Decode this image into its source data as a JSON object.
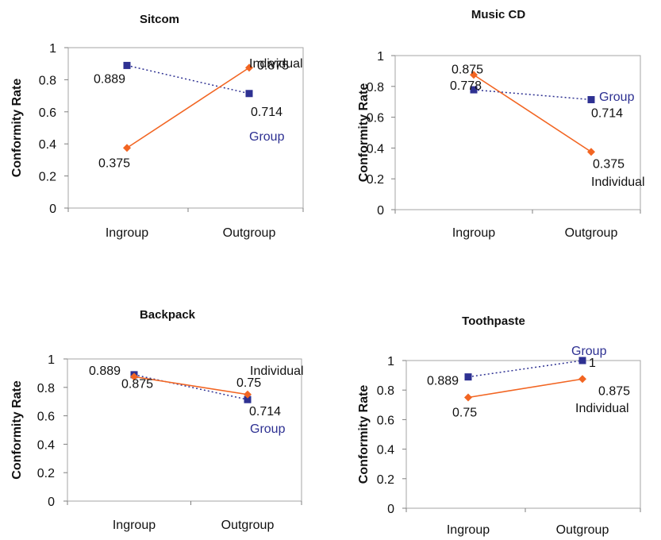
{
  "chart_data": [
    {
      "type": "line",
      "title": "Sitcom",
      "ylabel": "Conformity Rate",
      "xlabel": "",
      "categories": [
        "Ingroup",
        "Outgroup"
      ],
      "ylim": [
        0,
        1
      ],
      "yticks": [
        "0",
        "0.2",
        "0.4",
        "0.6",
        "0.8",
        "1"
      ],
      "series": [
        {
          "name": "Group",
          "values": [
            0.889,
            0.714
          ],
          "labels": [
            "0.889",
            "0.714"
          ],
          "color": "#2e3192",
          "style": "dotted",
          "marker": "square"
        },
        {
          "name": "Individual",
          "values": [
            0.375,
            0.875
          ],
          "labels": [
            "0.375",
            "0.875"
          ],
          "color": "#f26522",
          "style": "solid",
          "marker": "diamond"
        }
      ]
    },
    {
      "type": "line",
      "title": "Music CD",
      "ylabel": "Conformity Rate",
      "xlabel": "",
      "categories": [
        "Ingroup",
        "Outgroup"
      ],
      "ylim": [
        0,
        1
      ],
      "yticks": [
        "0",
        "0.2",
        "0.4",
        "0.6",
        "0.8",
        "1"
      ],
      "series": [
        {
          "name": "Group",
          "values": [
            0.778,
            0.714
          ],
          "labels": [
            "0.778",
            "0.714"
          ],
          "color": "#2e3192",
          "style": "dotted",
          "marker": "square"
        },
        {
          "name": "Individual",
          "values": [
            0.875,
            0.375
          ],
          "labels": [
            "0.875",
            "0.375"
          ],
          "color": "#f26522",
          "style": "solid",
          "marker": "diamond"
        }
      ]
    },
    {
      "type": "line",
      "title": "Backpack",
      "ylabel": "Conformity Rate",
      "xlabel": "",
      "categories": [
        "Ingroup",
        "Outgroup"
      ],
      "ylim": [
        0,
        1
      ],
      "yticks": [
        "0",
        "0.2",
        "0.4",
        "0.6",
        "0.8",
        "1"
      ],
      "series": [
        {
          "name": "Group",
          "values": [
            0.889,
            0.714
          ],
          "labels": [
            "0.889",
            "0.714"
          ],
          "color": "#2e3192",
          "style": "dotted",
          "marker": "square"
        },
        {
          "name": "Individual",
          "values": [
            0.875,
            0.75
          ],
          "labels": [
            "0.875",
            "0.75"
          ],
          "color": "#f26522",
          "style": "solid",
          "marker": "diamond"
        }
      ]
    },
    {
      "type": "line",
      "title": "Toothpaste",
      "ylabel": "Conformity Rate",
      "xlabel": "",
      "categories": [
        "Ingroup",
        "Outgroup"
      ],
      "ylim": [
        0,
        1
      ],
      "yticks": [
        "0",
        "0.2",
        "0.4",
        "0.6",
        "0.8",
        "1"
      ],
      "series": [
        {
          "name": "Group",
          "values": [
            0.889,
            1
          ],
          "labels": [
            "0.889",
            "1"
          ],
          "color": "#2e3192",
          "style": "dotted",
          "marker": "square"
        },
        {
          "name": "Individual",
          "values": [
            0.75,
            0.875
          ],
          "labels": [
            "0.75",
            "0.875"
          ],
          "color": "#f26522",
          "style": "solid",
          "marker": "diamond"
        }
      ]
    }
  ]
}
